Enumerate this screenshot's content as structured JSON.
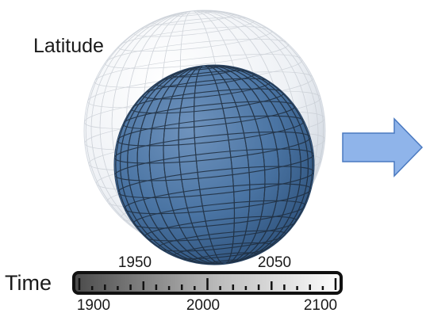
{
  "labels": {
    "latitude": "Latitude",
    "time": "Time"
  },
  "timeline": {
    "ticks_top": [
      "1950",
      "2050"
    ],
    "ticks_bottom": [
      "1900",
      "2000",
      "2100"
    ]
  },
  "colors": {
    "inner_sphere": "#3f6a99",
    "outer_sphere": "#e8ecf1",
    "grid_line": "#1e2c3c",
    "arrow_fill": "#8fb4ea",
    "arrow_stroke": "#4a79c0",
    "bar_dark": "#3a3a3a",
    "bar_light": "#ffffff"
  },
  "icons": {
    "arrow": "right-arrow-icon"
  }
}
